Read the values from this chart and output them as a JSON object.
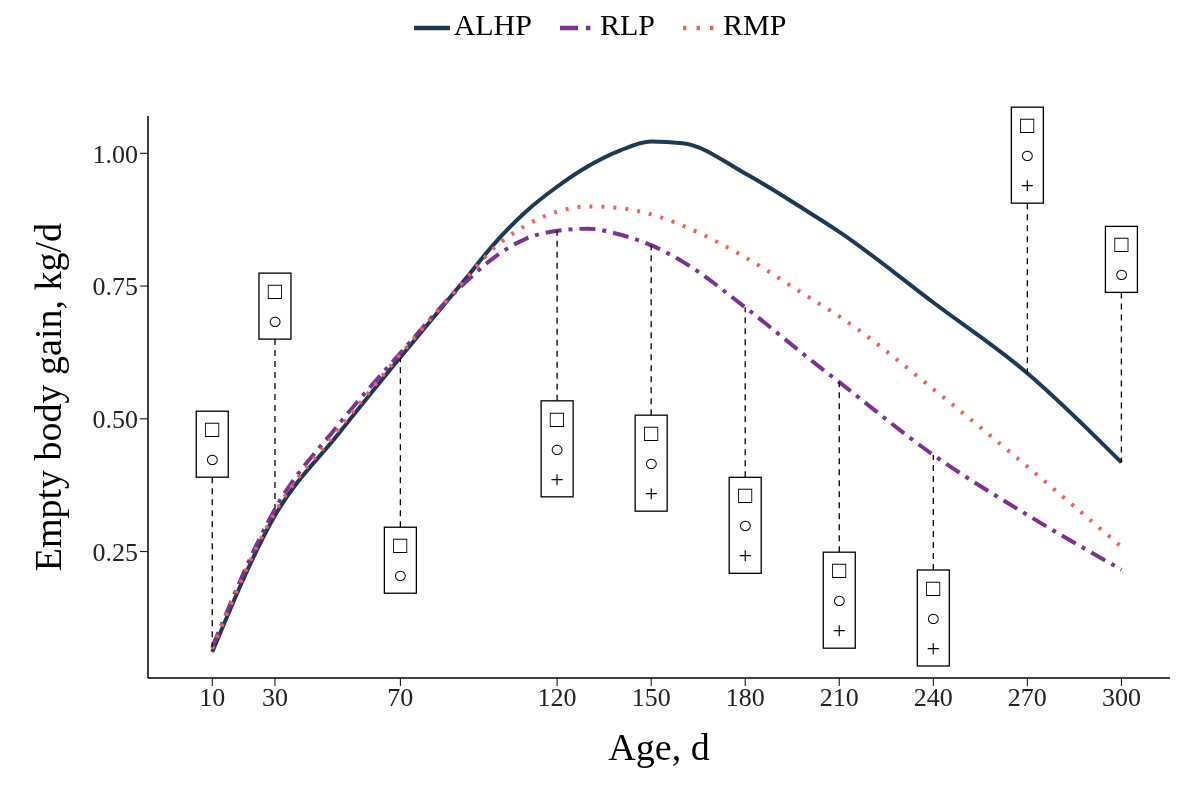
{
  "chart_data": {
    "type": "line",
    "xlabel": "Age, d",
    "ylabel": "Empty body gain, kg/d",
    "x": [
      10,
      30,
      50,
      70,
      90,
      100,
      110,
      120,
      130,
      140,
      150,
      160,
      180,
      200,
      210,
      240,
      270,
      300
    ],
    "series": [
      {
        "name": "ALHP",
        "color": "#1b3a57",
        "line_style": "solid",
        "values": [
          0.061,
          0.318,
          0.47,
          0.616,
          0.758,
          0.83,
          0.89,
          0.937,
          0.976,
          1.005,
          1.022,
          1.019,
          0.962,
          0.89,
          0.852,
          0.719,
          0.586,
          0.418
        ]
      },
      {
        "name": "RLP",
        "color": "#7b3294",
        "line_style": "dashed",
        "values": [
          0.07,
          0.33,
          0.487,
          0.624,
          0.753,
          0.804,
          0.839,
          0.854,
          0.858,
          0.847,
          0.827,
          0.796,
          0.71,
          0.615,
          0.569,
          0.432,
          0.319,
          0.216
        ]
      },
      {
        "name": "RMP",
        "color": "#f0605d",
        "line_style": "dotted",
        "values": [
          0.067,
          0.324,
          0.478,
          0.621,
          0.758,
          0.822,
          0.864,
          0.89,
          0.9,
          0.897,
          0.885,
          0.864,
          0.804,
          0.73,
          0.693,
          0.556,
          0.41,
          0.259
        ]
      }
    ],
    "xlim": [
      -10.5,
      315.5
    ],
    "xticks": [
      10,
      30,
      70,
      120,
      150,
      180,
      210,
      240,
      270,
      300
    ],
    "ylim": [
      0.012,
      1.07
    ],
    "yticks": [
      {
        "value": 0.25,
        "label": "0.25"
      },
      {
        "value": 0.5,
        "label": "0.50"
      },
      {
        "value": 0.75,
        "label": "0.75"
      },
      {
        "value": 1,
        "label": "1.00"
      }
    ],
    "grid": false,
    "legend": "top",
    "marker": "none",
    "annotations": [
      {
        "text": "□\n○",
        "x": 10,
        "y": 0.07
      },
      {
        "text": "□\n○",
        "x": 30,
        "y": 0.33
      },
      {
        "text": "□\n○",
        "x": 70,
        "y": 0.616
      },
      {
        "text": "□\n○\n+",
        "x": 120,
        "y": 0.854
      },
      {
        "text": "□\n○\n+",
        "x": 150,
        "y": 0.827
      },
      {
        "text": "□\n○\n+",
        "x": 180,
        "y": 0.71
      },
      {
        "text": "□\n○\n+",
        "x": 210,
        "y": 0.569
      },
      {
        "text": "□\n○\n+",
        "x": 240,
        "y": 0.432
      },
      {
        "text": "□\n○\n+",
        "x": 270,
        "y": 0.586
      },
      {
        "text": "□\n○",
        "x": 300,
        "y": 0.418
      }
    ]
  }
}
